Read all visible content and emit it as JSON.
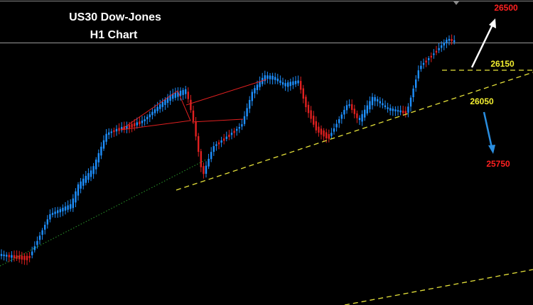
{
  "header": {
    "title": "US30 Dow-Jones",
    "subtitle": "H1 Chart"
  },
  "levels": [
    {
      "label": "26500"
    },
    {
      "label": "26150"
    },
    {
      "label": "26050"
    },
    {
      "label": "25750"
    }
  ]
}
